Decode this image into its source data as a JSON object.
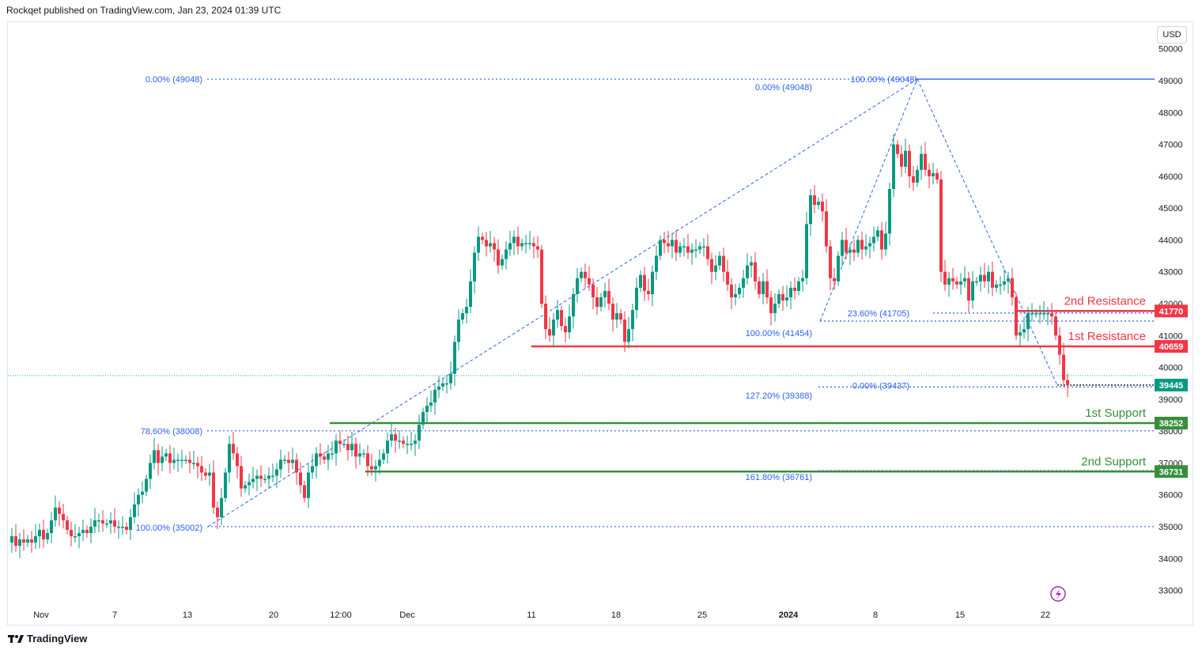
{
  "header": {
    "text": "Rockqet published on TradingView.com, Jan 23, 2024 01:39 UTC"
  },
  "currency_button": "USD",
  "footer": {
    "brand": "TradingView"
  },
  "colors": {
    "up": "#089981",
    "down": "#f23645",
    "fib": "#2962ff",
    "resistance": "#f23645",
    "support": "#388e3c"
  },
  "chart_data": {
    "type": "candlestick",
    "x_ticks": [
      "Nov",
      "7",
      "13",
      "20",
      "12:00",
      "Dec",
      "11",
      "18",
      "25",
      "2024",
      "8",
      "15",
      "22"
    ],
    "y_ticks": [
      33000,
      34000,
      35000,
      36000,
      37000,
      38000,
      39000,
      40000,
      41000,
      42000,
      43000,
      44000,
      45000,
      46000,
      47000,
      48000,
      49000,
      50000
    ],
    "ylim": [
      32700,
      50300
    ],
    "price_series": [
      [
        0,
        34500
      ],
      [
        5,
        34700
      ],
      [
        10,
        34400
      ],
      [
        15,
        34600
      ],
      [
        20,
        34500
      ],
      [
        25,
        34600
      ],
      [
        30,
        34500
      ],
      [
        35,
        34700
      ],
      [
        40,
        34900
      ],
      [
        45,
        34600
      ],
      [
        50,
        34800
      ],
      [
        55,
        35200
      ],
      [
        60,
        35600
      ],
      [
        65,
        35400
      ],
      [
        70,
        35200
      ],
      [
        75,
        34900
      ],
      [
        80,
        34700
      ],
      [
        85,
        34700
      ],
      [
        90,
        34800
      ],
      [
        95,
        34900
      ],
      [
        100,
        34800
      ],
      [
        105,
        35000
      ],
      [
        110,
        35200
      ],
      [
        115,
        35200
      ],
      [
        120,
        35100
      ],
      [
        125,
        35100
      ],
      [
        130,
        35200
      ],
      [
        135,
        35000
      ],
      [
        140,
        35000
      ],
      [
        145,
        35000
      ],
      [
        150,
        34900
      ],
      [
        155,
        35300
      ],
      [
        160,
        35700
      ],
      [
        165,
        36000
      ],
      [
        170,
        36100
      ],
      [
        175,
        36500
      ],
      [
        180,
        37000
      ],
      [
        185,
        37400
      ],
      [
        190,
        37000
      ],
      [
        195,
        37200
      ],
      [
        200,
        37300
      ],
      [
        205,
        37000
      ],
      [
        210,
        37100
      ],
      [
        215,
        37100
      ],
      [
        220,
        37100
      ],
      [
        225,
        37100
      ],
      [
        230,
        37000
      ],
      [
        235,
        37000
      ],
      [
        240,
        36900
      ],
      [
        245,
        36700
      ],
      [
        250,
        36600
      ],
      [
        255,
        36700
      ],
      [
        260,
        35600
      ],
      [
        265,
        35300
      ],
      [
        270,
        35900
      ],
      [
        275,
        36700
      ],
      [
        280,
        37600
      ],
      [
        285,
        37300
      ],
      [
        290,
        36900
      ],
      [
        295,
        36200
      ],
      [
        300,
        36300
      ],
      [
        305,
        36400
      ],
      [
        310,
        36500
      ],
      [
        315,
        36600
      ],
      [
        320,
        36500
      ],
      [
        325,
        36500
      ],
      [
        330,
        36600
      ],
      [
        335,
        36600
      ],
      [
        340,
        36800
      ],
      [
        345,
        37100
      ],
      [
        350,
        37100
      ],
      [
        355,
        37000
      ],
      [
        360,
        37100
      ],
      [
        365,
        36700
      ],
      [
        370,
        36300
      ],
      [
        375,
        35900
      ],
      [
        380,
        36700
      ],
      [
        385,
        36900
      ],
      [
        390,
        37300
      ],
      [
        395,
        37200
      ],
      [
        400,
        37100
      ],
      [
        405,
        37300
      ],
      [
        410,
        37300
      ],
      [
        415,
        37700
      ],
      [
        420,
        37600
      ],
      [
        425,
        37600
      ],
      [
        430,
        37400
      ],
      [
        435,
        37600
      ],
      [
        440,
        37200
      ],
      [
        445,
        37300
      ],
      [
        450,
        37300
      ],
      [
        455,
        36900
      ],
      [
        460,
        36800
      ],
      [
        465,
        36900
      ],
      [
        470,
        37100
      ],
      [
        475,
        37300
      ],
      [
        480,
        37700
      ],
      [
        485,
        37900
      ],
      [
        490,
        37700
      ],
      [
        495,
        37700
      ],
      [
        500,
        37600
      ],
      [
        505,
        37600
      ],
      [
        510,
        37600
      ],
      [
        515,
        37700
      ],
      [
        520,
        38200
      ],
      [
        525,
        38600
      ],
      [
        530,
        38800
      ],
      [
        535,
        38900
      ],
      [
        540,
        39300
      ],
      [
        545,
        39400
      ],
      [
        550,
        39500
      ],
      [
        555,
        39500
      ],
      [
        560,
        39800
      ],
      [
        565,
        40800
      ],
      [
        570,
        41500
      ],
      [
        575,
        41700
      ],
      [
        580,
        41900
      ],
      [
        585,
        42700
      ],
      [
        590,
        43600
      ],
      [
        595,
        44100
      ],
      [
        600,
        44000
      ],
      [
        605,
        43800
      ],
      [
        610,
        43900
      ],
      [
        615,
        43700
      ],
      [
        620,
        43200
      ],
      [
        625,
        43400
      ],
      [
        630,
        43700
      ],
      [
        635,
        43900
      ],
      [
        640,
        44100
      ],
      [
        645,
        43800
      ],
      [
        650,
        43900
      ],
      [
        655,
        43900
      ],
      [
        660,
        43900
      ],
      [
        665,
        43800
      ],
      [
        670,
        43700
      ],
      [
        675,
        42000
      ],
      [
        680,
        41200
      ],
      [
        685,
        41000
      ],
      [
        690,
        41500
      ],
      [
        695,
        41800
      ],
      [
        700,
        41300
      ],
      [
        705,
        41100
      ],
      [
        710,
        41600
      ],
      [
        715,
        42300
      ],
      [
        720,
        42800
      ],
      [
        725,
        43000
      ],
      [
        730,
        42800
      ],
      [
        735,
        42600
      ],
      [
        740,
        42200
      ],
      [
        745,
        41900
      ],
      [
        750,
        42200
      ],
      [
        755,
        42400
      ],
      [
        760,
        42000
      ],
      [
        765,
        41500
      ],
      [
        770,
        41700
      ],
      [
        775,
        41500
      ],
      [
        780,
        40800
      ],
      [
        785,
        41200
      ],
      [
        790,
        41800
      ],
      [
        795,
        42500
      ],
      [
        800,
        42900
      ],
      [
        805,
        42400
      ],
      [
        810,
        42300
      ],
      [
        815,
        43000
      ],
      [
        820,
        43500
      ],
      [
        825,
        44000
      ],
      [
        830,
        43900
      ],
      [
        835,
        43800
      ],
      [
        840,
        44000
      ],
      [
        845,
        43600
      ],
      [
        850,
        43800
      ],
      [
        855,
        43800
      ],
      [
        860,
        43600
      ],
      [
        865,
        43700
      ],
      [
        870,
        43700
      ],
      [
        875,
        43800
      ],
      [
        880,
        43800
      ],
      [
        885,
        43400
      ],
      [
        890,
        43000
      ],
      [
        895,
        43200
      ],
      [
        900,
        43500
      ],
      [
        905,
        43000
      ],
      [
        910,
        42600
      ],
      [
        915,
        42200
      ],
      [
        920,
        42300
      ],
      [
        925,
        42500
      ],
      [
        930,
        42800
      ],
      [
        935,
        43200
      ],
      [
        940,
        43300
      ],
      [
        945,
        42700
      ],
      [
        950,
        42300
      ],
      [
        955,
        42700
      ],
      [
        960,
        42200
      ],
      [
        965,
        41700
      ],
      [
        970,
        42000
      ],
      [
        975,
        42300
      ],
      [
        980,
        42100
      ],
      [
        985,
        42200
      ],
      [
        990,
        42500
      ],
      [
        995,
        42400
      ],
      [
        1000,
        42700
      ],
      [
        1005,
        42800
      ],
      [
        1010,
        44500
      ],
      [
        1015,
        45400
      ],
      [
        1020,
        45100
      ],
      [
        1025,
        45200
      ],
      [
        1030,
        44900
      ],
      [
        1035,
        43800
      ],
      [
        1040,
        42800
      ],
      [
        1045,
        42700
      ],
      [
        1050,
        43500
      ],
      [
        1055,
        44000
      ],
      [
        1060,
        43600
      ],
      [
        1065,
        43700
      ],
      [
        1070,
        43600
      ],
      [
        1075,
        44000
      ],
      [
        1080,
        43700
      ],
      [
        1085,
        43800
      ],
      [
        1090,
        43900
      ],
      [
        1095,
        44100
      ],
      [
        1100,
        44300
      ],
      [
        1105,
        43700
      ],
      [
        1110,
        44200
      ],
      [
        1115,
        45600
      ],
      [
        1120,
        47000
      ],
      [
        1125,
        46700
      ],
      [
        1130,
        46300
      ],
      [
        1135,
        46800
      ],
      [
        1140,
        46000
      ],
      [
        1145,
        45800
      ],
      [
        1150,
        46200
      ],
      [
        1155,
        46700
      ],
      [
        1160,
        46200
      ],
      [
        1165,
        46000
      ],
      [
        1170,
        46100
      ],
      [
        1175,
        45900
      ],
      [
        1180,
        43000
      ],
      [
        1185,
        42600
      ],
      [
        1190,
        42800
      ],
      [
        1195,
        42700
      ],
      [
        1200,
        42600
      ],
      [
        1205,
        42700
      ],
      [
        1210,
        42800
      ],
      [
        1215,
        42100
      ],
      [
        1220,
        42700
      ],
      [
        1225,
        42700
      ],
      [
        1230,
        42900
      ],
      [
        1235,
        42700
      ],
      [
        1240,
        43000
      ],
      [
        1245,
        42500
      ],
      [
        1250,
        42600
      ],
      [
        1255,
        42600
      ],
      [
        1260,
        42700
      ],
      [
        1265,
        42800
      ],
      [
        1270,
        42200
      ],
      [
        1275,
        41000
      ],
      [
        1280,
        41100
      ],
      [
        1285,
        41200
      ],
      [
        1290,
        41700
      ],
      [
        1295,
        41700
      ],
      [
        1300,
        41700
      ],
      [
        1305,
        41700
      ],
      [
        1310,
        41700
      ],
      [
        1315,
        41700
      ],
      [
        1320,
        41600
      ],
      [
        1325,
        41000
      ],
      [
        1330,
        40400
      ],
      [
        1335,
        39600
      ],
      [
        1340,
        39450
      ]
    ],
    "fibonacci": [
      {
        "label": "0.00% (49048)",
        "value": 49048
      },
      {
        "label": "0.00% (49048)",
        "value": 49048
      },
      {
        "label": "100.00% (49048)",
        "value": 49048
      },
      {
        "label": "100.00% (41454)",
        "value": 41454
      },
      {
        "label": "23.60% (41705)",
        "value": 41705
      },
      {
        "label": "0.00% (39437)",
        "value": 39437
      },
      {
        "label": "127.20% (39388)",
        "value": 39388
      },
      {
        "label": "78.60% (38008)",
        "value": 38008
      },
      {
        "label": "161.80% (36761)",
        "value": 36761
      },
      {
        "label": "100.00% (35002)",
        "value": 35002
      }
    ],
    "levels": [
      {
        "name": "2nd Resistance",
        "value": 41770,
        "tag": "41770",
        "kind": "resistance"
      },
      {
        "name": "1st Resistance",
        "value": 40659,
        "tag": "40659",
        "kind": "resistance"
      },
      {
        "name": "",
        "value": 39445,
        "tag": "39445",
        "kind": "current"
      },
      {
        "name": "1st Support",
        "value": 38252,
        "tag": "38252",
        "kind": "support"
      },
      {
        "name": "2nd Support",
        "value": 36731,
        "tag": "36731",
        "kind": "support"
      }
    ]
  }
}
